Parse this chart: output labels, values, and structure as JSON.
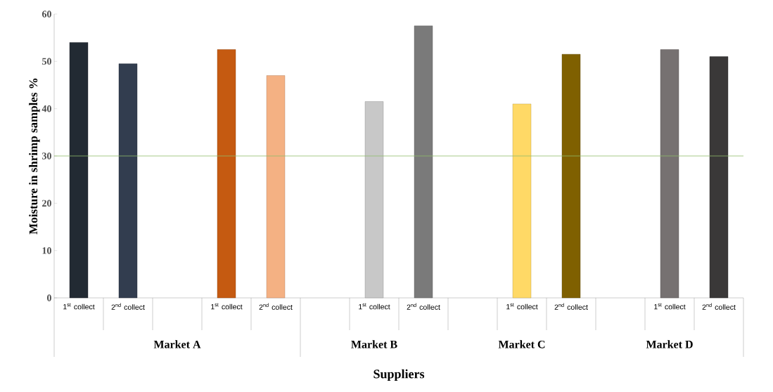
{
  "chart_data": {
    "type": "bar",
    "xlabel": "Suppliers",
    "ylabel": "Moisture in shrimp samples %",
    "categories": [
      "1$^{st}$ collect",
      "2$^{nd}$ collect",
      null,
      "1$^{st}$ collect",
      "2$^{nd}$ collect",
      null,
      "1$^{st}$ collect",
      "2$^{nd}$ collect",
      null,
      "1$^{st}$ collect",
      "2$^{nd}$ collect",
      null,
      "1$^{st}$ collect",
      "2$^{nd}$ collect"
    ],
    "values": [
      54,
      49.5,
      null,
      52.5,
      47,
      null,
      41.5,
      57.5,
      null,
      41,
      51.5,
      null,
      52.5,
      51
    ],
    "colors": [
      "#222a33",
      "#323d4f",
      null,
      "#c55a11",
      "#f4b183",
      null,
      "#c8c8c8",
      "#7a7a7a",
      null,
      "#ffd966",
      "#7f6000",
      null,
      "#767171",
      "#3a3838"
    ],
    "ylim": [
      0,
      60
    ],
    "yticks": [
      0,
      10,
      20,
      30,
      40,
      50,
      60
    ],
    "ref_lines": [
      {
        "axis": "y",
        "value": 30,
        "color": "#8fbc6a"
      }
    ],
    "annotations": [
      "Market A",
      "Market B",
      "Market C",
      "Market D"
    ],
    "grid": false
  }
}
